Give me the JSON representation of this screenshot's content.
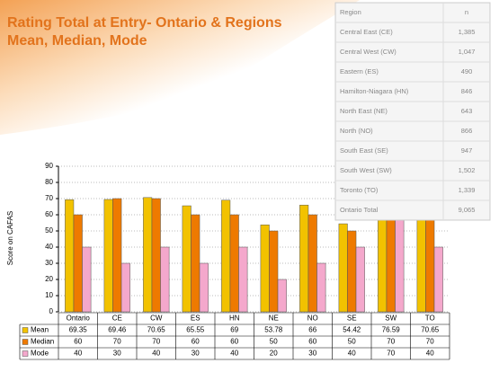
{
  "chart_data": {
    "type": "bar",
    "title": "Rating Total at Entry- Ontario & Regions",
    "subtitle": "Mean, Median, Mode",
    "y_label": "Score on CAFAS",
    "categories": [
      "Ontario",
      "CE",
      "CW",
      "ES",
      "HN",
      "NE",
      "NO",
      "SE",
      "SW",
      "TO"
    ],
    "series": [
      {
        "name": "Mean",
        "color": "#f2c200",
        "values": [
          69.35,
          69.46,
          70.65,
          65.55,
          69,
          53.78,
          66,
          54.42,
          76.59,
          70.65
        ]
      },
      {
        "name": "Median",
        "color": "#ee7a00",
        "values": [
          60,
          70,
          70,
          60,
          60,
          50,
          60,
          50,
          70,
          70
        ]
      },
      {
        "name": "Mode",
        "color": "#f4a8cc",
        "values": [
          40,
          30,
          40,
          30,
          40,
          20,
          30,
          40,
          70,
          40
        ]
      }
    ],
    "ylim": [
      0,
      90
    ],
    "yticks": [
      0,
      10,
      20,
      30,
      40,
      50,
      60,
      70,
      80,
      90
    ],
    "grid": true
  },
  "table": {
    "header": [
      "Region",
      "n"
    ],
    "rows": [
      [
        "Central East (CE)",
        "1,385"
      ],
      [
        "Central  West (CW)",
        "1,047"
      ],
      [
        "Eastern (ES)",
        "490"
      ],
      [
        "Hamilton-Niagara (HN)",
        "846"
      ],
      [
        "North East (NE)",
        "643"
      ],
      [
        "North (NO)",
        "866"
      ],
      [
        "South East (SE)",
        "947"
      ],
      [
        "South West (SW)",
        "1,502"
      ],
      [
        "Toronto (TO)",
        "1,339"
      ],
      [
        "Ontario Total",
        "9,065"
      ]
    ]
  }
}
